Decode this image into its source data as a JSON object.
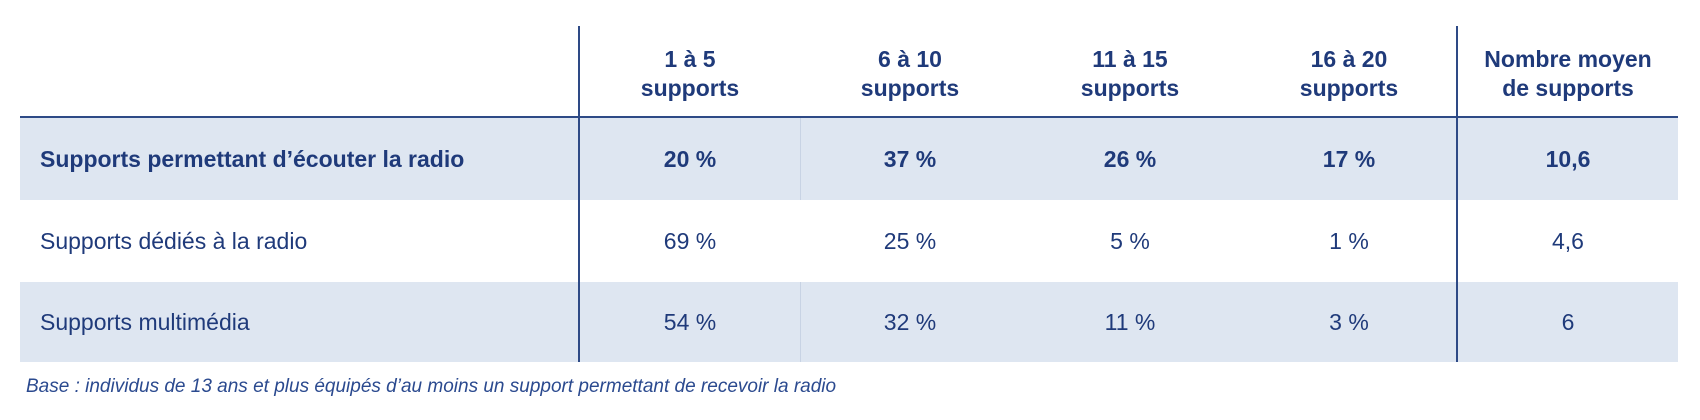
{
  "chart_data": {
    "type": "table",
    "columns": [
      "1 à 5\nsupports",
      "6 à 10\nsupports",
      "11 à 15\nsupports",
      "16 à 20\nsupports",
      "Nombre moyen\nde supports"
    ],
    "rows": [
      {
        "label": "Supports permettant d’écouter la radio",
        "values": [
          "20 %",
          "37 %",
          "26 %",
          "17 %",
          "10,6"
        ]
      },
      {
        "label": "Supports dédiés à la radio",
        "values": [
          "69 %",
          "25 %",
          "5 %",
          "1 %",
          "4,6"
        ]
      },
      {
        "label": "Supports multimédia",
        "values": [
          "54 %",
          "32 %",
          "11 %",
          "3 %",
          "6"
        ]
      }
    ],
    "note": "Base : individus de 13 ans et plus équipés d’au moins un support permettant de recevoir la radio"
  },
  "colors": {
    "text": "#1f3a7a",
    "shade": "#dee6f1",
    "rule": "#2e4a86"
  }
}
